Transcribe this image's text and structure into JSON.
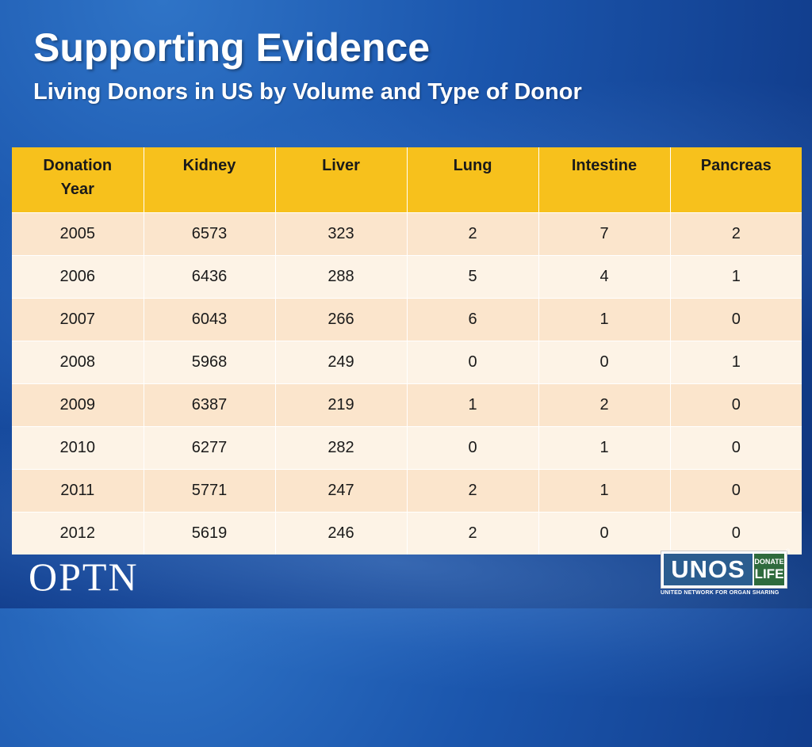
{
  "slide": {
    "title": "Supporting Evidence",
    "subtitle": "Living Donors in US by Volume and Type of Donor"
  },
  "table": {
    "headers": [
      "Donation Year",
      "Kidney",
      "Liver",
      "Lung",
      "Intestine",
      "Pancreas"
    ],
    "rows": [
      [
        "2005",
        "6573",
        "323",
        "2",
        "7",
        "2"
      ],
      [
        "2006",
        "6436",
        "288",
        "5",
        "4",
        "1"
      ],
      [
        "2007",
        "6043",
        "266",
        "6",
        "1",
        "0"
      ],
      [
        "2008",
        "5968",
        "249",
        "0",
        "0",
        "1"
      ],
      [
        "2009",
        "6387",
        "219",
        "1",
        "2",
        "0"
      ],
      [
        "2010",
        "6277",
        "282",
        "0",
        "1",
        "0"
      ],
      [
        "2011",
        "5771",
        "247",
        "2",
        "1",
        "0"
      ],
      [
        "2012",
        "5619",
        "246",
        "2",
        "0",
        "0"
      ]
    ]
  },
  "footer": {
    "optn_logo": "OPTN",
    "unos_logo": "UNOS",
    "donate_life_top": "DONATE",
    "donate_life_bottom": "LIFE",
    "unos_tagline": "UNITED NETWORK FOR ORGAN SHARING",
    "registered_mark": "®"
  },
  "colors": {
    "header_fill": "#f7c11c",
    "row_odd": "#fbe5cc",
    "row_even": "#fdf3e6",
    "background_blue": "#1b56ad"
  }
}
